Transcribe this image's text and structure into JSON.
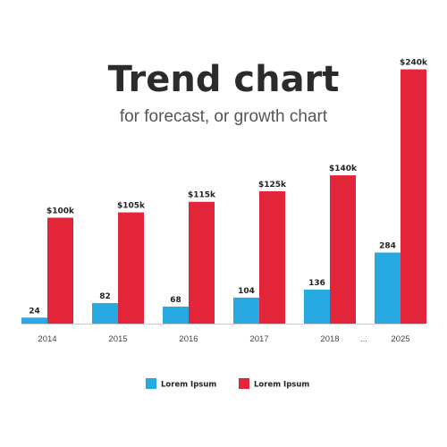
{
  "chart_data": {
    "type": "bar",
    "title": "Trend chart",
    "subtitle": "for forecast, or growth chart",
    "categories": [
      "2014",
      "2015",
      "2016",
      "2017",
      "2018",
      "2025"
    ],
    "gap_label": "...",
    "series": [
      {
        "name": "Lorem Ipsum",
        "color": "#29a9e1",
        "values": [
          24,
          82,
          68,
          104,
          136,
          284
        ],
        "labels": [
          "24",
          "82",
          "68",
          "104",
          "136",
          "284"
        ]
      },
      {
        "name": "Lorem Ipsum",
        "color": "#e3253a",
        "values": [
          100,
          105,
          115,
          125,
          140,
          240
        ],
        "labels": [
          "$100k",
          "$105k",
          "$115k",
          "$125k",
          "$140k",
          "$240k"
        ]
      }
    ],
    "legend": "bottom-center",
    "grid": false
  }
}
